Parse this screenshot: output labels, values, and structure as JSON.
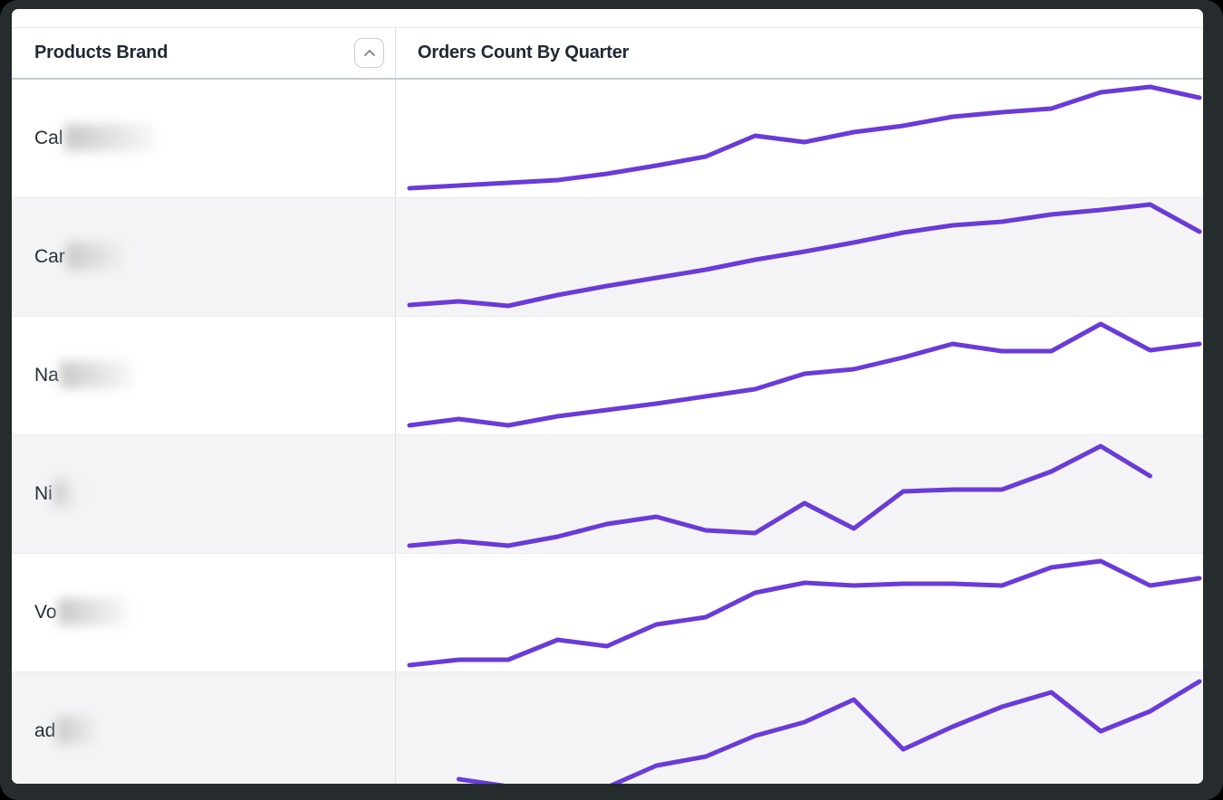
{
  "window": {
    "frame_color": "#262b2d",
    "card_color": "#ffffff"
  },
  "table": {
    "columns": [
      {
        "label": "Products Brand",
        "sortable": true,
        "sort_icon": "chevron-up"
      },
      {
        "label": "Orders Count By Quarter"
      }
    ],
    "rows": [
      {
        "brand_prefix": "Cal",
        "redacted": true,
        "redact_width": 100
      },
      {
        "brand_prefix": "Car",
        "redacted": true,
        "redact_width": 76
      },
      {
        "brand_prefix": "Na",
        "redacted": true,
        "redact_width": 80
      },
      {
        "brand_prefix": "Ni",
        "redacted": true,
        "redact_width": 30
      },
      {
        "brand_prefix": "Vo",
        "redacted": true,
        "redact_width": 76
      },
      {
        "brand_prefix": "ad",
        "redacted": true,
        "redact_width": 54
      }
    ]
  },
  "chart_data": [
    {
      "type": "line",
      "brand_prefix": "Cal",
      "x_unit": "quarter",
      "axis_labels_shown": false,
      "note": "values are relative order counts estimated from sparkline (no axis labels visible), scale 0-130",
      "values": [
        10,
        13,
        16,
        19,
        26,
        35,
        45,
        68,
        61,
        72,
        79,
        89,
        94,
        98,
        116,
        122,
        110
      ]
    },
    {
      "type": "line",
      "brand_prefix": "Car",
      "x_unit": "quarter",
      "axis_labels_shown": false,
      "values": [
        12,
        16,
        11,
        23,
        33,
        42,
        51,
        62,
        71,
        81,
        92,
        100,
        104,
        112,
        117,
        123,
        93
      ]
    },
    {
      "type": "line",
      "brand_prefix": "Na",
      "x_unit": "quarter",
      "axis_labels_shown": false,
      "values": [
        10,
        17,
        10,
        20,
        27,
        34,
        42,
        50,
        67,
        72,
        85,
        100,
        92,
        92,
        122,
        93,
        100
      ]
    },
    {
      "type": "line",
      "brand_prefix": "Ni",
      "x_unit": "quarter",
      "axis_labels_shown": false,
      "note": "series ends one quarter early (no final data point)",
      "values": [
        8,
        13,
        8,
        18,
        32,
        40,
        25,
        22,
        55,
        27,
        68,
        70,
        70,
        90,
        118,
        85
      ]
    },
    {
      "type": "line",
      "brand_prefix": "Vo",
      "x_unit": "quarter",
      "axis_labels_shown": false,
      "values": [
        7,
        13,
        13,
        35,
        28,
        52,
        60,
        87,
        98,
        95,
        97,
        97,
        95,
        115,
        122,
        95,
        103
      ]
    },
    {
      "type": "line",
      "brand_prefix": "ad",
      "x_unit": "quarter",
      "axis_labels_shown": false,
      "note": "nulls are gaps (missing quarters) visible in the sparkline",
      "values": [
        null,
        12,
        4,
        null,
        3,
        27,
        37,
        60,
        75,
        100,
        45,
        70,
        92,
        108,
        65,
        87,
        120
      ]
    }
  ],
  "style": {
    "accent": "#6A3BD8",
    "row_alt_bg": "#f4f4f6",
    "header_text": "#202934",
    "brand_text": "#242d38",
    "divider": "#dee0e3",
    "chevron": "#76808c"
  }
}
